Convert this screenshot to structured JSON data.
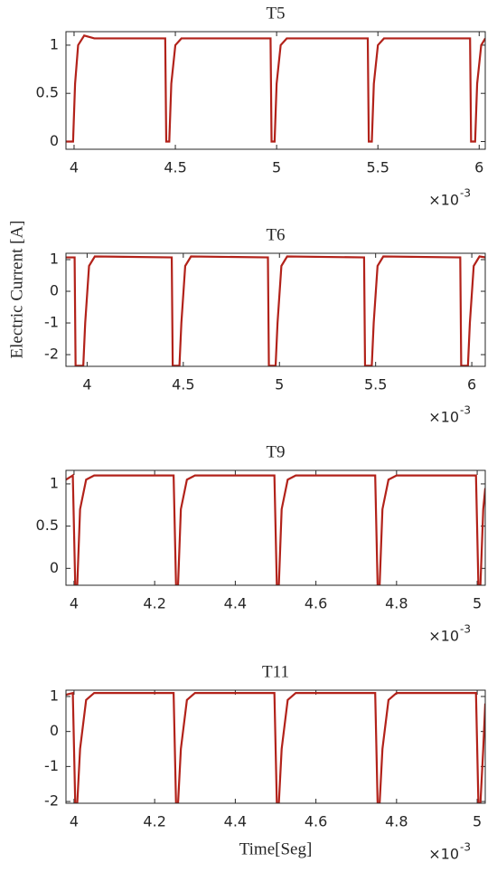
{
  "ylabel": "Electric Current [A]",
  "xlabel": "Time[Seg]",
  "chart_data": [
    {
      "type": "line",
      "title": "T5",
      "x_multiplier": "×10",
      "x_exponent": "-3",
      "color": "#b2221a",
      "xlim": [
        3.96,
        6.03
      ],
      "xticks": [
        4,
        4.5,
        5,
        5.5,
        6
      ],
      "ylim": [
        -0.08,
        1.14
      ],
      "yticks": [
        0,
        0.5,
        1
      ],
      "x": [
        3.96,
        3.995,
        4.005,
        4.02,
        4.05,
        4.1,
        4.45,
        4.455,
        4.47,
        4.48,
        4.5,
        4.53,
        4.97,
        4.975,
        4.99,
        5.0,
        5.02,
        5.05,
        5.45,
        5.455,
        5.47,
        5.48,
        5.5,
        5.53,
        5.955,
        5.96,
        5.98,
        5.99,
        6.01,
        6.03
      ],
      "values": [
        0,
        0,
        0.6,
        1.0,
        1.1,
        1.07,
        1.07,
        0,
        0,
        0.6,
        1.0,
        1.07,
        1.07,
        0,
        0,
        0.6,
        1.0,
        1.07,
        1.07,
        0,
        0,
        0.6,
        1.0,
        1.07,
        1.07,
        0,
        0,
        0.6,
        1.0,
        1.07
      ]
    },
    {
      "type": "line",
      "title": "T6",
      "x_multiplier": "×10",
      "x_exponent": "-3",
      "color": "#b2221a",
      "xlim": [
        3.89,
        6.07
      ],
      "xticks": [
        4,
        4.5,
        5,
        5.5,
        6
      ],
      "ylim": [
        -2.37,
        1.2
      ],
      "yticks": [
        -2,
        -1,
        0,
        1
      ],
      "x": [
        3.89,
        3.935,
        3.94,
        3.98,
        3.99,
        4.01,
        4.04,
        4.44,
        4.445,
        4.48,
        4.49,
        4.51,
        4.54,
        4.94,
        4.945,
        4.98,
        4.99,
        5.01,
        5.04,
        5.44,
        5.445,
        5.48,
        5.49,
        5.51,
        5.54,
        5.94,
        5.945,
        5.98,
        5.99,
        6.01,
        6.04,
        6.07
      ],
      "values": [
        1.07,
        1.07,
        -2.35,
        -2.35,
        -1,
        0.8,
        1.1,
        1.07,
        -2.35,
        -2.35,
        -1,
        0.8,
        1.1,
        1.07,
        -2.35,
        -2.35,
        -1,
        0.8,
        1.1,
        1.07,
        -2.35,
        -2.35,
        -1,
        0.8,
        1.1,
        1.07,
        -2.35,
        -2.35,
        -1,
        0.8,
        1.1,
        1.07
      ]
    },
    {
      "type": "line",
      "title": "T9",
      "x_multiplier": "×10",
      "x_exponent": "-3",
      "color": "#b2221a",
      "xlim": [
        3.98,
        5.02
      ],
      "xticks": [
        4,
        4.2,
        4.4,
        4.6,
        4.8,
        5
      ],
      "ylim": [
        -0.2,
        1.16
      ],
      "yticks": [
        0,
        0.5,
        1
      ],
      "x": [
        3.98,
        3.997,
        4.003,
        4.008,
        4.015,
        4.03,
        4.05,
        4.247,
        4.253,
        4.258,
        4.265,
        4.28,
        4.3,
        4.497,
        4.503,
        4.508,
        4.515,
        4.53,
        4.55,
        4.747,
        4.753,
        4.758,
        4.765,
        4.78,
        4.8,
        4.997,
        5.003,
        5.008,
        5.015,
        5.02
      ],
      "values": [
        1.05,
        1.1,
        -0.2,
        -0.2,
        0.7,
        1.05,
        1.1,
        1.1,
        -0.2,
        -0.2,
        0.7,
        1.05,
        1.1,
        1.1,
        -0.2,
        -0.2,
        0.7,
        1.05,
        1.1,
        1.1,
        -0.2,
        -0.2,
        0.7,
        1.05,
        1.1,
        1.1,
        -0.2,
        -0.2,
        0.7,
        0.95
      ]
    },
    {
      "type": "line",
      "title": "T11",
      "x_multiplier": "×10",
      "x_exponent": "-3",
      "color": "#b2221a",
      "xlim": [
        3.98,
        5.02
      ],
      "xticks": [
        4,
        4.2,
        4.4,
        4.6,
        4.8,
        5
      ],
      "ylim": [
        -2.05,
        1.18
      ],
      "yticks": [
        -2,
        -1,
        0,
        1
      ],
      "x": [
        3.98,
        3.997,
        4.003,
        4.008,
        4.015,
        4.03,
        4.05,
        4.247,
        4.253,
        4.258,
        4.265,
        4.28,
        4.3,
        4.497,
        4.503,
        4.508,
        4.515,
        4.53,
        4.55,
        4.747,
        4.753,
        4.758,
        4.765,
        4.78,
        4.8,
        4.997,
        5.003,
        5.008,
        5.015,
        5.02
      ],
      "values": [
        1.05,
        1.1,
        -2.05,
        -2.05,
        -0.5,
        0.9,
        1.1,
        1.1,
        -2.05,
        -2.05,
        -0.5,
        0.9,
        1.1,
        1.1,
        -2.05,
        -2.05,
        -0.5,
        0.9,
        1.1,
        1.1,
        -2.05,
        -2.05,
        -0.5,
        0.9,
        1.1,
        1.1,
        -2.05,
        -2.05,
        -0.5,
        0.8
      ]
    }
  ]
}
